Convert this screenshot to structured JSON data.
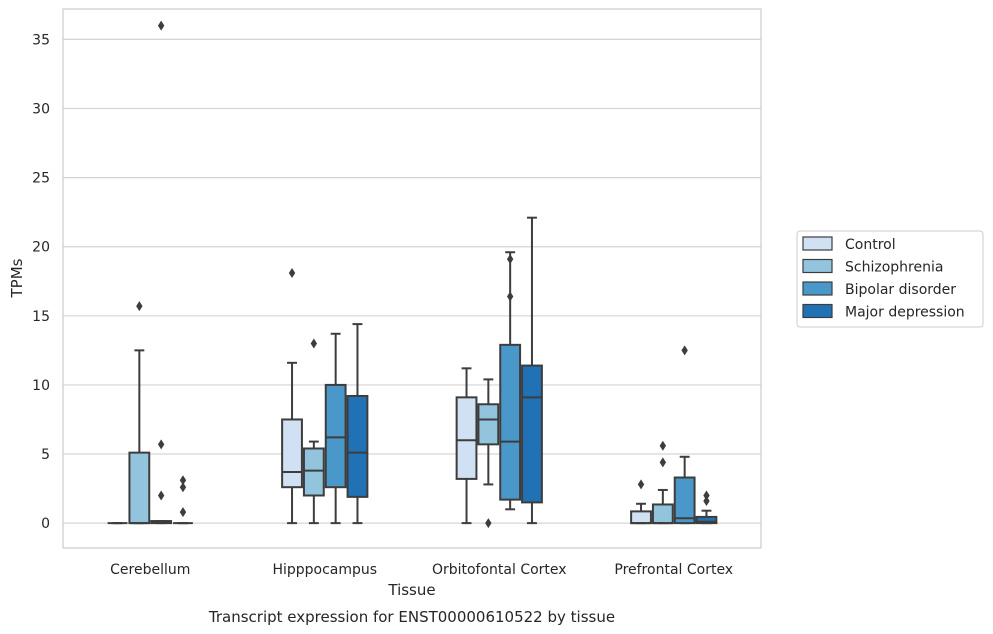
{
  "chart_data": {
    "type": "box",
    "title": "Transcript expression for ENST00000610522 by tissue",
    "xlabel": "Tissue",
    "ylabel": "TPMs",
    "ylim": [
      -1.8,
      37.2
    ],
    "yticks": [
      0,
      5,
      10,
      15,
      20,
      25,
      30,
      35
    ],
    "grid": true,
    "legend_position": "right",
    "categories": [
      "Cerebellum",
      "Hipppocampus",
      "Orbitofontal Cortex",
      "Prefrontal Cortex"
    ],
    "series": [
      {
        "name": "Control",
        "color": "#cfe1f2",
        "boxes": [
          {
            "whisker_low": 0,
            "q1": 0,
            "median": 0,
            "q3": 0,
            "whisker_high": 0,
            "outliers": []
          },
          {
            "whisker_low": 0,
            "q1": 2.6,
            "median": 3.7,
            "q3": 7.5,
            "whisker_high": 11.6,
            "outliers": [
              18.1
            ]
          },
          {
            "whisker_low": 0,
            "q1": 3.2,
            "median": 6.0,
            "q3": 9.1,
            "whisker_high": 11.2,
            "outliers": []
          },
          {
            "whisker_low": 0,
            "q1": 0,
            "median": 0,
            "q3": 0.85,
            "whisker_high": 1.4,
            "outliers": [
              2.8
            ]
          }
        ]
      },
      {
        "name": "Schizophrenia",
        "color": "#93c4de",
        "boxes": [
          {
            "whisker_low": 0,
            "q1": 0,
            "median": 0,
            "q3": 5.1,
            "whisker_high": 12.5,
            "outliers": [
              15.7
            ]
          },
          {
            "whisker_low": 0,
            "q1": 2.0,
            "median": 3.8,
            "q3": 5.4,
            "whisker_high": 5.9,
            "outliers": [
              13.0
            ]
          },
          {
            "whisker_low": 2.8,
            "q1": 5.7,
            "median": 7.5,
            "q3": 8.6,
            "whisker_high": 10.4,
            "outliers": [
              0
            ]
          },
          {
            "whisker_low": 0,
            "q1": 0,
            "median": 0,
            "q3": 1.35,
            "whisker_high": 2.4,
            "outliers": [
              4.4,
              5.6
            ]
          }
        ]
      },
      {
        "name": "Bipolar disorder",
        "color": "#4a98c9",
        "boxes": [
          {
            "whisker_low": 0,
            "q1": 0,
            "median": 0.05,
            "q3": 0.15,
            "whisker_high": 0.15,
            "outliers": [
              36.0,
              2.0,
              5.7
            ]
          },
          {
            "whisker_low": 0,
            "q1": 2.6,
            "median": 6.2,
            "q3": 10.0,
            "whisker_high": 13.7,
            "outliers": []
          },
          {
            "whisker_low": 1.0,
            "q1": 1.7,
            "median": 5.9,
            "q3": 12.9,
            "whisker_high": 19.6,
            "outliers": [
              16.4,
              19.1
            ]
          },
          {
            "whisker_low": 0,
            "q1": 0,
            "median": 0.35,
            "q3": 3.3,
            "whisker_high": 4.8,
            "outliers": [
              12.5
            ]
          }
        ]
      },
      {
        "name": "Major depression",
        "color": "#2171b5",
        "boxes": [
          {
            "whisker_low": 0,
            "q1": 0,
            "median": 0,
            "q3": 0,
            "whisker_high": 0,
            "outliers": [
              0.8,
              2.6,
              3.1
            ]
          },
          {
            "whisker_low": 0,
            "q1": 1.9,
            "median": 5.1,
            "q3": 9.2,
            "whisker_high": 14.4,
            "outliers": []
          },
          {
            "whisker_low": 0,
            "q1": 1.5,
            "median": 9.1,
            "q3": 11.4,
            "whisker_high": 22.1,
            "outliers": []
          },
          {
            "whisker_low": 0,
            "q1": 0,
            "median": 0.1,
            "q3": 0.45,
            "whisker_high": 0.9,
            "outliers": [
              1.6,
              2.0
            ]
          }
        ]
      }
    ]
  }
}
